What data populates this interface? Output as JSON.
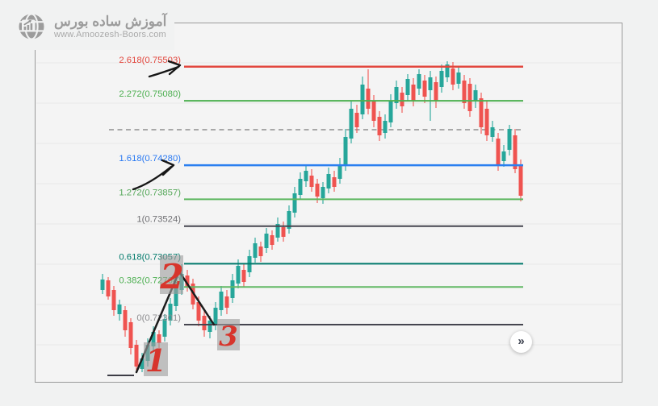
{
  "logo": {
    "brand": "آموزش ساده بورس",
    "url": "www.Amoozesh-Boors.com"
  },
  "chart_ui": {
    "scroll_button_glyph": "»"
  },
  "chart_data": {
    "type": "candlestick",
    "title": "",
    "grid": "horizontal-only",
    "price_range_visible": [
      0.7165,
      0.7576
    ],
    "colors": {
      "up": "#26a69a",
      "down": "#ef5350"
    },
    "fib_extension_levels": [
      {
        "ratio": "2.618",
        "price": 0.75503,
        "label": "2.618(0.75503)",
        "line_color": "#e2463d",
        "label_color": "#e2463d",
        "width": 2.5,
        "style": "solid"
      },
      {
        "ratio": "2.272",
        "price": 0.7508,
        "label": "2.272(0.75080)",
        "line_color": "#4caf50",
        "label_color": "#4caf50",
        "width": 2,
        "style": "solid"
      },
      {
        "ratio": "1.618",
        "price": 0.7428,
        "label": "1.618(0.74280)",
        "line_color": "#2b7ff0",
        "label_color": "#2979f2",
        "width": 2.5,
        "style": "solid"
      },
      {
        "ratio": "1.272",
        "price": 0.73857,
        "label": "1.272(0.73857)",
        "line_color": "#5cb65f",
        "label_color": "#56a85a",
        "width": 2,
        "style": "solid"
      },
      {
        "ratio": "1",
        "price": 0.73524,
        "label": "1(0.73524)",
        "line_color": "#45454f",
        "label_color": "#6e6e72",
        "width": 2,
        "style": "solid"
      },
      {
        "ratio": "0.618",
        "price": 0.73057,
        "label": "0.618(0.73057)",
        "line_color": "#00796b",
        "label_color": "#00796b",
        "width": 2,
        "style": "solid"
      },
      {
        "ratio": "0.382",
        "price": 0.72768,
        "label": "0.382(0.72768)",
        "line_color": "#62b865",
        "label_color": "#4caf50",
        "width": 2,
        "style": "solid"
      },
      {
        "ratio": "0",
        "price": 0.72301,
        "label": "0(0.72301)",
        "line_color": "#45454f",
        "label_color": "#8d8d90",
        "width": 2,
        "style": "solid"
      }
    ],
    "dashed_level": {
      "price": 0.74721,
      "color": "#8f8f8f",
      "style": "dashed",
      "label": ""
    },
    "candles": [
      [
        0.72731,
        0.72931,
        0.72681,
        0.72861
      ],
      [
        0.72851,
        0.72891,
        0.72611,
        0.72651
      ],
      [
        0.72731,
        0.72781,
        0.72411,
        0.72481
      ],
      [
        0.72431,
        0.72611,
        0.72351,
        0.72551
      ],
      [
        0.72481,
        0.72531,
        0.72151,
        0.72231
      ],
      [
        0.72331,
        0.72381,
        0.71931,
        0.72011
      ],
      [
        0.72051,
        0.72111,
        0.71711,
        0.71781
      ],
      [
        0.71751,
        0.71951,
        0.71711,
        0.71881
      ],
      [
        0.71851,
        0.72131,
        0.71781,
        0.72051
      ],
      [
        0.72031,
        0.72281,
        0.71961,
        0.72211
      ],
      [
        0.72181,
        0.72231,
        0.72011,
        0.72071
      ],
      [
        0.72151,
        0.72431,
        0.72091,
        0.72371
      ],
      [
        0.72351,
        0.72631,
        0.72291,
        0.72561
      ],
      [
        0.72531,
        0.72831,
        0.72471,
        0.72751
      ],
      [
        0.72731,
        0.73051,
        0.72671,
        0.72931
      ],
      [
        0.72911,
        0.72981,
        0.72711,
        0.72771
      ],
      [
        0.72811,
        0.72871,
        0.72491,
        0.72551
      ],
      [
        0.72581,
        0.72651,
        0.72281,
        0.72351
      ],
      [
        0.72411,
        0.72471,
        0.72151,
        0.72231
      ],
      [
        0.72211,
        0.72411,
        0.72131,
        0.72351
      ],
      [
        0.72291,
        0.72581,
        0.72231,
        0.72511
      ],
      [
        0.72481,
        0.72781,
        0.72411,
        0.72711
      ],
      [
        0.72651,
        0.72731,
        0.72431,
        0.72511
      ],
      [
        0.72631,
        0.72931,
        0.72571,
        0.72851
      ],
      [
        0.72811,
        0.73111,
        0.72751,
        0.73031
      ],
      [
        0.72981,
        0.73051,
        0.72761,
        0.72831
      ],
      [
        0.72951,
        0.73231,
        0.72891,
        0.73151
      ],
      [
        0.73131,
        0.73381,
        0.73071,
        0.73311
      ],
      [
        0.73271,
        0.73331,
        0.73081,
        0.73151
      ],
      [
        0.73251,
        0.73501,
        0.73191,
        0.73431
      ],
      [
        0.73411,
        0.73471,
        0.73231,
        0.73291
      ],
      [
        0.73381,
        0.73631,
        0.73331,
        0.73551
      ],
      [
        0.73511,
        0.73581,
        0.73331,
        0.73391
      ],
      [
        0.73491,
        0.73781,
        0.73431,
        0.73711
      ],
      [
        0.73691,
        0.74011,
        0.73631,
        0.73931
      ],
      [
        0.73911,
        0.74191,
        0.73851,
        0.74111
      ],
      [
        0.74081,
        0.74271,
        0.74011,
        0.74211
      ],
      [
        0.74151,
        0.74231,
        0.73951,
        0.74011
      ],
      [
        0.74051,
        0.74111,
        0.73811,
        0.73891
      ],
      [
        0.73871,
        0.74071,
        0.73801,
        0.74011
      ],
      [
        0.73991,
        0.74251,
        0.73931,
        0.74171
      ],
      [
        0.74131,
        0.74211,
        0.73951,
        0.74011
      ],
      [
        0.74111,
        0.74371,
        0.74051,
        0.74291
      ],
      [
        0.74271,
        0.74731,
        0.74211,
        0.74631
      ],
      [
        0.74611,
        0.75081,
        0.74551,
        0.74981
      ],
      [
        0.74931,
        0.75031,
        0.74681,
        0.74751
      ],
      [
        0.74911,
        0.75381,
        0.74851,
        0.75281
      ],
      [
        0.75231,
        0.75471,
        0.74911,
        0.74981
      ],
      [
        0.75081,
        0.75151,
        0.74751,
        0.74831
      ],
      [
        0.74881,
        0.74951,
        0.74581,
        0.74651
      ],
      [
        0.74681,
        0.74911,
        0.74611,
        0.74831
      ],
      [
        0.74811,
        0.75161,
        0.74751,
        0.75081
      ],
      [
        0.75051,
        0.75331,
        0.74981,
        0.75251
      ],
      [
        0.75181,
        0.75251,
        0.74931,
        0.75011
      ],
      [
        0.75151,
        0.75411,
        0.75081,
        0.75351
      ],
      [
        0.75281,
        0.75361,
        0.75011,
        0.75081
      ],
      [
        0.75231,
        0.75471,
        0.75151,
        0.75411
      ],
      [
        0.75331,
        0.75401,
        0.75051,
        0.75131
      ],
      [
        0.75211,
        0.75451,
        0.74831,
        0.75371
      ],
      [
        0.75311,
        0.75381,
        0.74991,
        0.75071
      ],
      [
        0.75251,
        0.75531,
        0.75181,
        0.75451
      ],
      [
        0.75371,
        0.75571,
        0.75311,
        0.75531
      ],
      [
        0.75481,
        0.75561,
        0.75211,
        0.75281
      ],
      [
        0.75291,
        0.75511,
        0.75231,
        0.75431
      ],
      [
        0.75331,
        0.75401,
        0.74981,
        0.75051
      ],
      [
        0.75291,
        0.75361,
        0.74881,
        0.74951
      ],
      [
        0.75071,
        0.75281,
        0.74991,
        0.75211
      ],
      [
        0.75111,
        0.75181,
        0.74671,
        0.74751
      ],
      [
        0.74981,
        0.75071,
        0.74581,
        0.74651
      ],
      [
        0.74631,
        0.74831,
        0.74571,
        0.74751
      ],
      [
        0.74611,
        0.74681,
        0.74211,
        0.74281
      ],
      [
        0.74331,
        0.74531,
        0.74261,
        0.74451
      ],
      [
        0.74471,
        0.74781,
        0.74401,
        0.74731
      ],
      [
        0.74651,
        0.74731,
        0.74181,
        0.74231
      ],
      [
        0.74281,
        0.74351,
        0.73831,
        0.73901
      ]
    ],
    "annotations": {
      "wave_points": [
        {
          "label": "1",
          "price": 0.71711
        },
        {
          "label": "2",
          "price": 0.72961
        },
        {
          "label": "3",
          "price": 0.72301
        }
      ],
      "point_label_color": "#d7352c",
      "point_box_color": "rgba(158,158,158,0.62)",
      "trendline_color": "#1c1c1c",
      "arrows": [
        {
          "points_to": "2.618 level"
        },
        {
          "points_to": "1.618 level"
        }
      ]
    }
  }
}
